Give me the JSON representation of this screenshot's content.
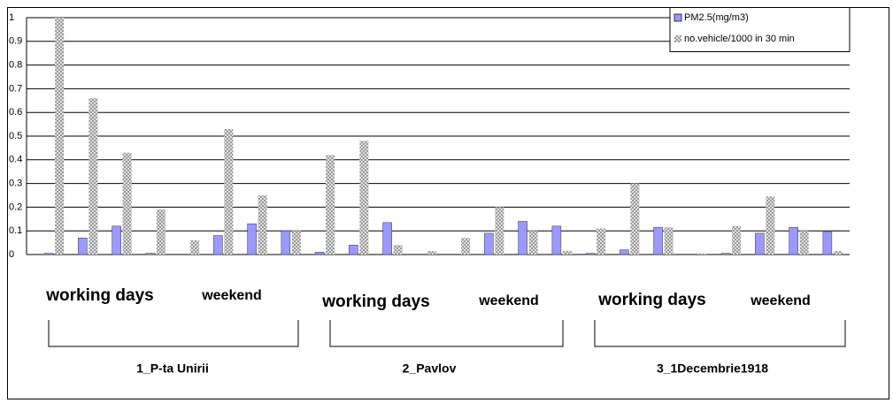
{
  "chart_data": {
    "type": "bar",
    "categories": [
      null,
      null,
      null,
      null,
      null,
      null,
      null,
      null,
      null,
      null,
      null,
      null,
      null,
      null,
      null,
      null,
      null,
      null,
      null,
      null,
      null,
      null,
      null,
      null
    ],
    "series": [
      {
        "name": "PM2.5(mg/m3)",
        "color": "#9999ff",
        "values": [
          0.005,
          0.07,
          0.12,
          0.005,
          0,
          0.08,
          0.13,
          0.1,
          0.01,
          0.04,
          0.135,
          0,
          0,
          0.09,
          0.14,
          0.12,
          0.005,
          0.02,
          0.115,
          0,
          0.005,
          0.09,
          0.115,
          0.095
        ]
      },
      {
        "name": "no.vehicle/1000 in 30 min",
        "color": "#999999",
        "values": [
          1,
          0.66,
          0.43,
          0.19,
          0.06,
          0.53,
          0.25,
          0.1,
          0.42,
          0.48,
          0.04,
          0.015,
          0.07,
          0.2,
          0.1,
          0.015,
          0.11,
          0.3,
          0.115,
          0.005,
          0.12,
          0.245,
          0.1,
          0.015
        ]
      }
    ],
    "ylim": [
      0,
      1
    ],
    "yticks": [
      0,
      0.1,
      0.2,
      0.3,
      0.4,
      0.5,
      0.6,
      0.7,
      0.8,
      0.9,
      1
    ],
    "grid": true,
    "legend": "top-right",
    "period_labels": [
      "working days",
      "weekend",
      "working days",
      "weekend",
      "working days",
      "weekend"
    ],
    "location_labels": [
      "1_P-ta Unirii",
      "2_Pavlov",
      "3_1Decembrie1918"
    ]
  }
}
